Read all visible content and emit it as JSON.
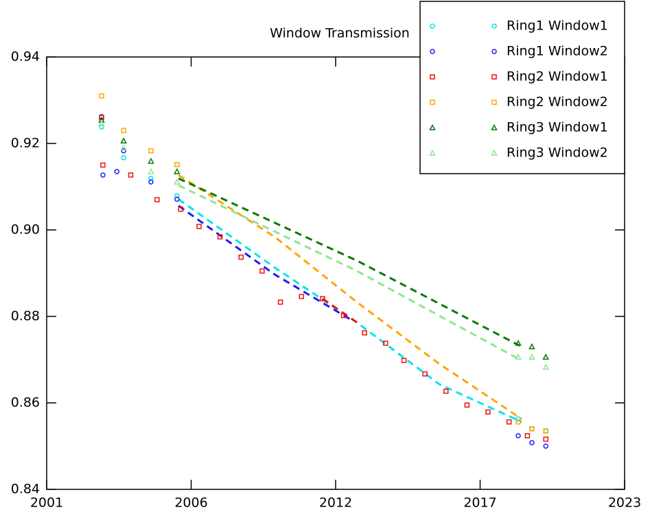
{
  "chart_data": {
    "type": "scatter",
    "title": "Window Transmission",
    "xlim": [
      2001,
      2023
    ],
    "xticks": [
      2001,
      {
        "value": 2006.5,
        "label": "2006"
      },
      2012,
      {
        "value": 2017.5,
        "label": "2017"
      },
      2023
    ],
    "ylim": [
      0.84,
      0.94
    ],
    "yticks": [
      0.94,
      0.92,
      {
        "value": 0.9,
        "label": "0.90"
      },
      0.88,
      0.86,
      0.84
    ],
    "legend": "upper right",
    "series": [
      {
        "name": "Ring1 Window1",
        "color": "#00e5ee",
        "marker": "circle",
        "x": [
          2003.09,
          2003.93,
          2004.97,
          2005.96,
          2018.95,
          2019.47,
          2020.0
        ],
        "values": [
          0.9238,
          0.9167,
          0.9119,
          0.9079,
          0.8563,
          0.854,
          0.8535
        ],
        "fit": {
          "x": [
            2006.02,
            2009.68,
            2012.81,
            2015.95,
            2019.08
          ],
          "values": [
            0.9071,
            0.8913,
            0.8786,
            0.8643,
            0.8556
          ]
        }
      },
      {
        "name": "Ring1 Window2",
        "color": "#1a1aff",
        "marker": "circle",
        "x": [
          2003.09,
          2003.14,
          2003.67,
          2003.93,
          2004.97,
          2005.96,
          2018.95,
          2019.47,
          2020.0
        ],
        "values": [
          0.9262,
          0.9127,
          0.9135,
          0.9183,
          0.9111,
          0.9071,
          0.8524,
          0.8508,
          0.85
        ],
        "fit": {
          "x": [
            2006.02,
            2009.68,
            2012.68
          ],
          "values": [
            0.9056,
            0.8897,
            0.8789
          ]
        }
      },
      {
        "name": "Ring2 Window1",
        "color": "#ee1111",
        "marker": "square",
        "x": [
          2003.09,
          2003.14,
          2004.2,
          2005.2,
          2006.1,
          2006.8,
          2007.6,
          2008.4,
          2009.2,
          2009.9,
          2010.7,
          2011.5,
          2012.3,
          2013.1,
          2013.9,
          2014.6,
          2015.4,
          2016.2,
          2017.0,
          2017.8,
          2018.6,
          2019.3,
          2020.0
        ],
        "values": [
          0.926,
          0.915,
          0.9127,
          0.907,
          0.9048,
          0.9008,
          0.8984,
          0.8937,
          0.8905,
          0.8833,
          0.8846,
          0.8841,
          0.8802,
          0.8762,
          0.8738,
          0.8698,
          0.8667,
          0.8627,
          0.8595,
          0.8579,
          0.8556,
          0.8524,
          0.8516
        ],
        "fit": {
          "x": [
            2011.5,
            2012.81
          ],
          "values": [
            0.8841,
            0.8786
          ]
        }
      },
      {
        "name": "Ring2 Window2",
        "color": "#ffa500",
        "marker": "square",
        "x": [
          2003.09,
          2003.93,
          2004.97,
          2005.96,
          2018.95,
          2019.47,
          2020.0
        ],
        "values": [
          0.931,
          0.923,
          0.9183,
          0.9151,
          0.8556,
          0.854,
          0.8535
        ],
        "fit": {
          "x": [
            2006.02,
            2009.68,
            2012.81,
            2015.95,
            2019.08
          ],
          "values": [
            0.9127,
            0.8984,
            0.8833,
            0.869,
            0.8563
          ]
        }
      },
      {
        "name": "Ring3 Window1",
        "color": "#007a00",
        "marker": "triangle",
        "x": [
          2003.09,
          2003.93,
          2004.97,
          2005.96,
          2018.95,
          2019.47,
          2020.0
        ],
        "values": [
          0.9254,
          0.9206,
          0.9159,
          0.9135,
          0.8738,
          0.873,
          0.8706
        ],
        "fit": {
          "x": [
            2006.02,
            2012.81,
            2019.08
          ],
          "values": [
            0.9119,
            0.8929,
            0.873
          ]
        }
      },
      {
        "name": "Ring3 Window2",
        "color": "#8ee68e",
        "marker": "triangle",
        "x": [
          2003.09,
          2003.93,
          2004.97,
          2005.96,
          2018.95,
          2019.47,
          2020.0
        ],
        "values": [
          0.9246,
          0.919,
          0.9135,
          0.9111,
          0.8706,
          0.8706,
          0.8683
        ],
        "fit": {
          "x": [
            2006.02,
            2012.81,
            2019.08
          ],
          "values": [
            0.9103,
            0.8905,
            0.8698
          ]
        }
      }
    ]
  }
}
